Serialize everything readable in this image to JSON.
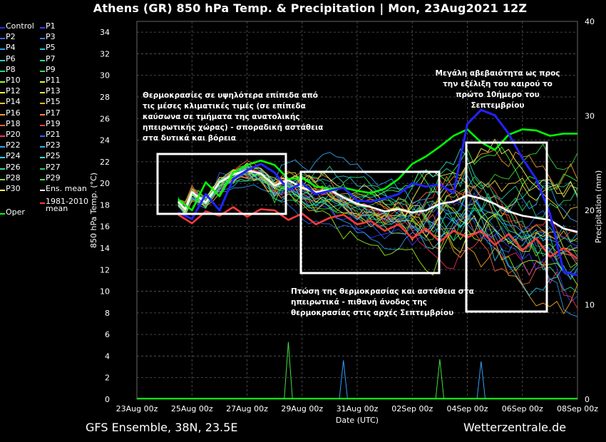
{
  "title": "Athens  (GR)  850 hPa Temp. & Precipitation | Mon, 23Aug2021 12Z",
  "footer_left": "GFS Ensemble, 38N, 23.5E",
  "footer_right": "Wetterzentrale.de",
  "colors": {
    "background": "#000000",
    "grid": "#5a5a5a",
    "ens_mean": "#ffffff",
    "climate_mean": "#ff3b3b",
    "oper": "#00ff00",
    "control": "#2222ff",
    "annotation_box": "#ffffff"
  },
  "legend": [
    {
      "label": "Control",
      "color": "#2b2bff"
    },
    {
      "label": "P1",
      "color": "#3a3aff"
    },
    {
      "label": "P2",
      "color": "#2f6bff"
    },
    {
      "label": "P3",
      "color": "#3f7fff"
    },
    {
      "label": "P4",
      "color": "#2fa0ff"
    },
    {
      "label": "P5",
      "color": "#28c8e0"
    },
    {
      "label": "P6",
      "color": "#20d8b0"
    },
    {
      "label": "P7",
      "color": "#20e090"
    },
    {
      "label": "P8",
      "color": "#20e070"
    },
    {
      "label": "P9",
      "color": "#40e040"
    },
    {
      "label": "P10",
      "color": "#a0ff20"
    },
    {
      "label": "P11",
      "color": "#e0ff20"
    },
    {
      "label": "P12",
      "color": "#ffff40"
    },
    {
      "label": "P13",
      "color": "#ffe040"
    },
    {
      "label": "P14",
      "color": "#ffc040"
    },
    {
      "label": "P15",
      "color": "#ffb020"
    },
    {
      "label": "P16",
      "color": "#ff9a30"
    },
    {
      "label": "P17",
      "color": "#ff8040"
    },
    {
      "label": "P18",
      "color": "#ff6040"
    },
    {
      "label": "P19",
      "color": "#ff4040"
    },
    {
      "label": "P20",
      "color": "#ff3060"
    },
    {
      "label": "P21",
      "color": "#3060ff"
    },
    {
      "label": "P22",
      "color": "#2f9fff"
    },
    {
      "label": "P23",
      "color": "#30b0ff"
    },
    {
      "label": "P24",
      "color": "#30d0ff"
    },
    {
      "label": "P25",
      "color": "#30e0d0"
    },
    {
      "label": "P26",
      "color": "#30e090"
    },
    {
      "label": "P27",
      "color": "#30d060"
    },
    {
      "label": "P28",
      "color": "#80e030"
    },
    {
      "label": "P29",
      "color": "#40ff40"
    },
    {
      "label": "P30",
      "color": "#ffff60"
    },
    {
      "label": "Ens. mean",
      "color": "#ffffff"
    },
    {
      "label": "1981-2010\nmean",
      "color": "#ff3b3b"
    },
    {
      "label": "Oper",
      "color": "#00ff00"
    }
  ],
  "chart_data": {
    "type": "line",
    "ylabel": "850 hPa Temp. (°C)",
    "y2label": "Precipitation (mm)",
    "xlabel": "Date (UTC)",
    "ylim": [
      0,
      35
    ],
    "y2lim": [
      0,
      40
    ],
    "yticks": [
      0,
      2,
      4,
      6,
      8,
      10,
      12,
      14,
      16,
      18,
      20,
      22,
      24,
      26,
      28,
      30,
      32,
      34
    ],
    "y2ticks": [
      0,
      10,
      20,
      30,
      40
    ],
    "x_tick_labels": [
      "23Aug 00z",
      "25Aug 00z",
      "27Aug 00z",
      "29Aug 00z",
      "31Aug 00z",
      "02Sep 00z",
      "04Sep 00z",
      "06Sep 00z",
      "08Sep 00z"
    ],
    "x_range_days": [
      0,
      16
    ],
    "grid": true,
    "series": [
      {
        "name": "Ens. mean",
        "color": "#ffffff",
        "x": [
          1.5,
          1.75,
          2,
          2.5,
          3,
          3.5,
          4,
          4.5,
          5,
          5.5,
          6,
          6.5,
          7,
          7.5,
          8,
          8.5,
          9,
          9.5,
          10,
          10.5,
          11,
          11.5,
          12,
          12.5,
          13,
          13.5,
          14,
          14.5,
          15,
          15.5,
          16
        ],
        "y": [
          18.3,
          17.6,
          19.2,
          18.2,
          20.1,
          20.8,
          21.2,
          20.9,
          19.8,
          20.3,
          19.6,
          19.2,
          19.4,
          18.7,
          18.1,
          17.8,
          17.4,
          17.6,
          17.3,
          17.5,
          18.1,
          18.3,
          18.9,
          18.6,
          18.1,
          17.4,
          17.0,
          16.8,
          16.6,
          15.8,
          15.5
        ]
      },
      {
        "name": "1981-2010\nmean",
        "color": "#ff3b3b",
        "x": [
          1.5,
          2,
          2.5,
          3,
          3.5,
          4,
          4.5,
          5,
          5.5,
          6,
          6.5,
          7,
          7.5,
          8,
          8.5,
          9,
          9.5,
          10,
          10.5,
          11,
          11.5,
          12,
          12.5,
          13,
          13.5,
          14,
          14.5,
          15,
          15.5,
          16
        ],
        "y": [
          17.1,
          16.3,
          17.4,
          17.0,
          17.8,
          16.9,
          17.6,
          17.5,
          16.6,
          17.2,
          16.2,
          16.8,
          17.1,
          16.2,
          16.5,
          15.6,
          16.2,
          14.9,
          15.8,
          14.6,
          15.6,
          15.0,
          15.6,
          14.3,
          15.3,
          13.8,
          14.9,
          13.2,
          14.0,
          13.0
        ]
      },
      {
        "name": "Oper",
        "color": "#00ff00",
        "x": [
          1.5,
          2,
          2.5,
          3,
          3.5,
          4,
          4.5,
          5,
          5.5,
          6,
          6.5,
          7,
          7.5,
          8,
          8.5,
          9,
          9.5,
          10,
          10.5,
          11,
          11.5,
          12,
          12.5,
          13,
          13.5,
          14,
          14.5,
          15,
          15.5,
          16
        ],
        "y": [
          18.5,
          17.5,
          20.1,
          18.8,
          21.0,
          21.7,
          22.1,
          21.7,
          20.4,
          20.5,
          19.7,
          19.5,
          19.6,
          19.3,
          19.1,
          19.5,
          20.4,
          21.8,
          22.5,
          23.4,
          24.4,
          25.0,
          23.8,
          23.1,
          24.5,
          25.0,
          24.9,
          24.4,
          24.6,
          24.6
        ]
      },
      {
        "name": "Control",
        "color": "#2222ff",
        "x": [
          1.5,
          2,
          2.5,
          3,
          3.5,
          4,
          4.5,
          5,
          5.5,
          6,
          6.5,
          7,
          7.5,
          8,
          8.5,
          9,
          9.5,
          10,
          10.5,
          11,
          11.5,
          12,
          12.5,
          13,
          13.5,
          14,
          14.5,
          15,
          15.5,
          16
        ],
        "y": [
          17.3,
          16.7,
          19.0,
          17.5,
          20.4,
          21.2,
          21.8,
          21.0,
          19.4,
          20.0,
          19.0,
          19.3,
          19.6,
          18.4,
          18.3,
          18.6,
          19.0,
          20.0,
          19.7,
          19.9,
          19.1,
          25.5,
          26.8,
          26.3,
          24.6,
          22.3,
          20.4,
          17.2,
          11.8,
          11.5
        ]
      }
    ],
    "precip_spike_days": [
      5.5,
      7.5,
      11.0,
      12.5
    ]
  },
  "annotations": [
    {
      "text": "Θερμοκρασίες σε υψηλότερα επίπεδα από\nτις μέσες κλιματικές τιμές (σε επίπεδα\nκαύσωνα σε τμήματα της ανατολικής\nηπειρωτικής χώρας) - σποραδική αστάθεια\nστα δυτικά και βόρεια"
    },
    {
      "text": "Πτώση της θερμοκρασίας και αστάθεια στα\nηπειρωτικά - πιθανή άνοδος της\nθερμοκρασίας στις αρχές Σεπτεμβρίου"
    },
    {
      "text": "Μεγάλη αβεβαιότητα ως προς\nτην εξέλιξη του καιρού το\nπρώτο 10ήμερο του\nΣεπτεμβρίου"
    }
  ]
}
